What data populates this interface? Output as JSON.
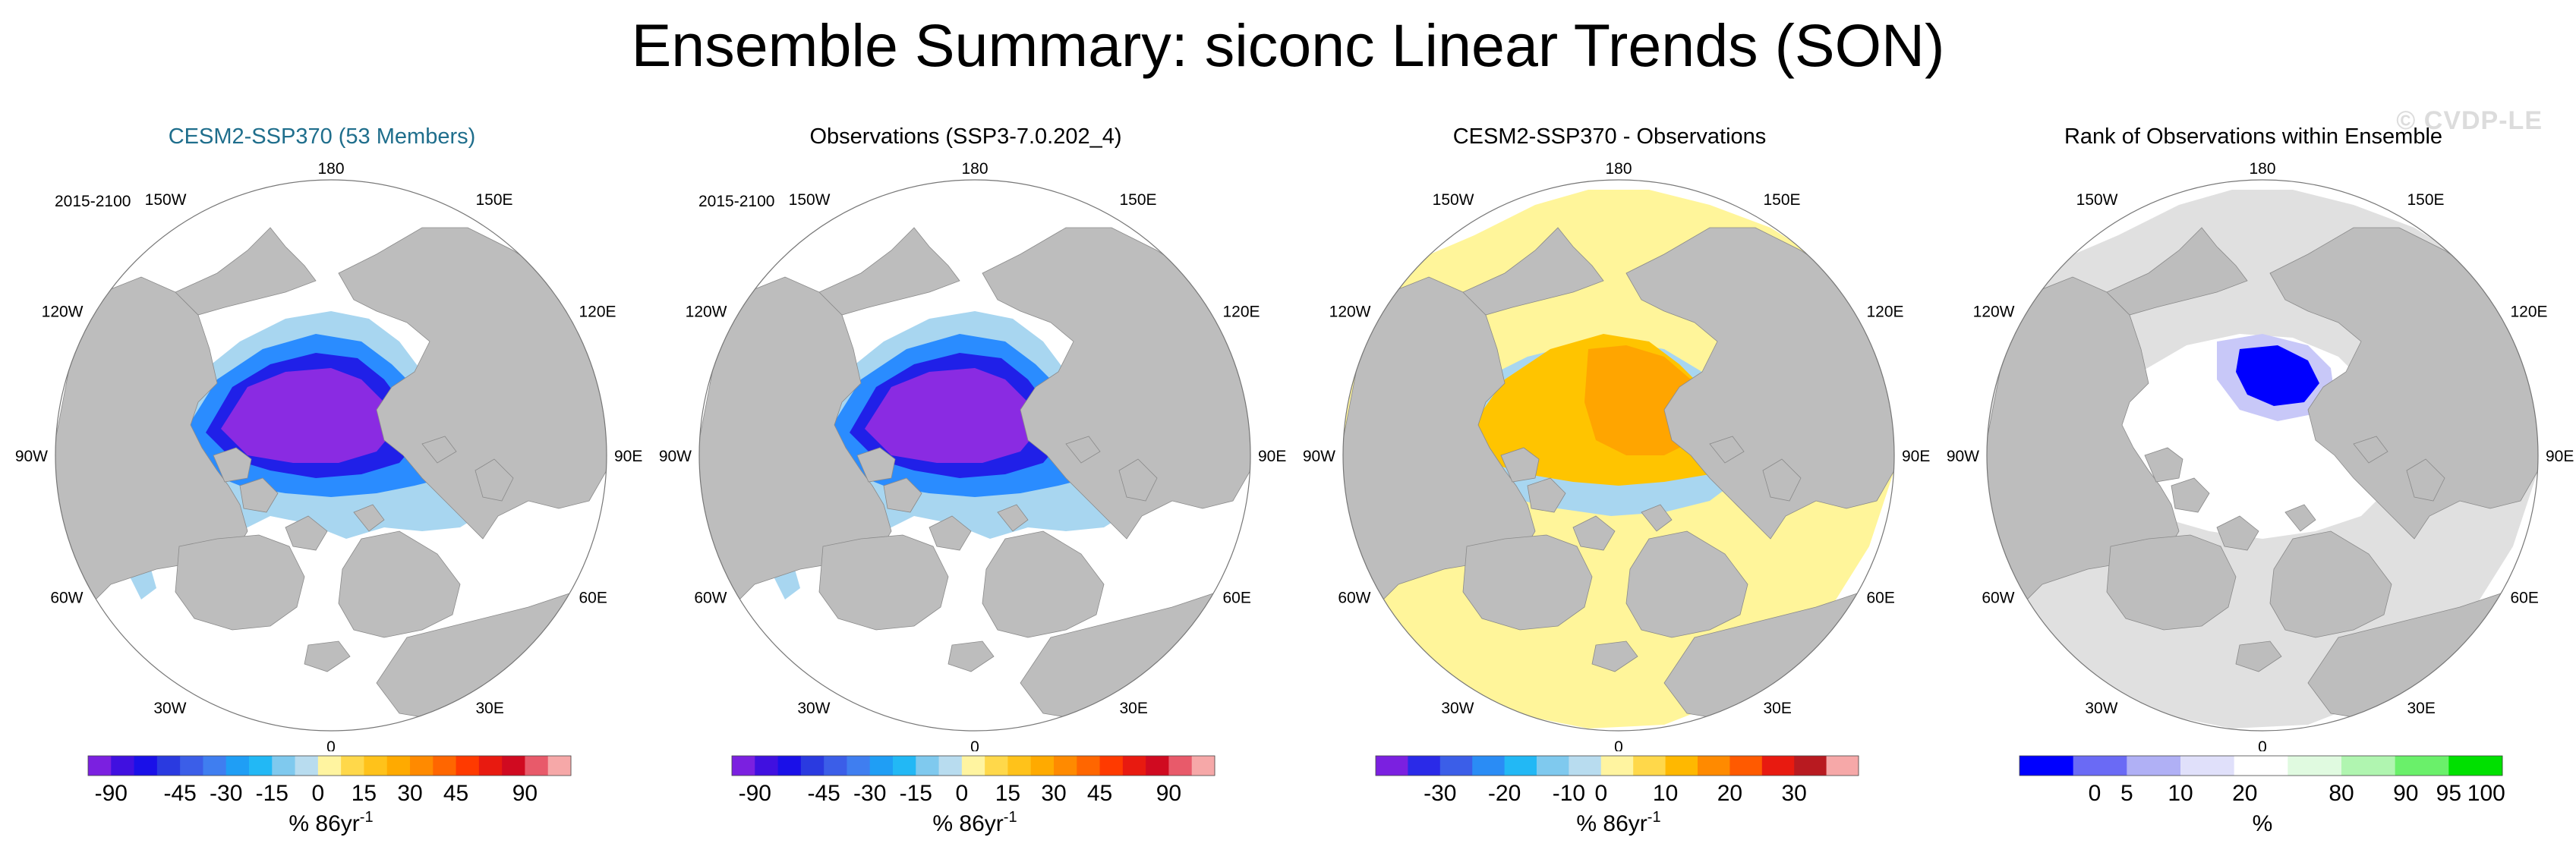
{
  "title": "Ensemble Summary: siconc Linear Trends (SON)",
  "watermark": "© CVDP-LE",
  "colors": {
    "land": "#bdbdbd",
    "ocean": "#ffffff",
    "purple": "#8a2be2",
    "blue": "#2020e8",
    "mid_blue": "#2a8cff",
    "light_blue": "#a8d6f0",
    "yellow": "#fff59a",
    "orange": "#ffa500",
    "gold": "#ffc400",
    "rank_gray": "#e0e0e0",
    "rank_blue": "#0000ff"
  },
  "panels": [
    {
      "title": "CESM2-SSP370 (53 Members)",
      "title_color": "#1f6e8c",
      "period": "2015-2100"
    },
    {
      "title": "Observations (SSP3-7.0.202_4)",
      "title_color": "#000000",
      "period": "2015-2100"
    },
    {
      "title": "CESM2-SSP370 - Observations",
      "title_color": "#000000",
      "period": ""
    },
    {
      "title": "Rank of Observations within Ensemble",
      "title_color": "#000000",
      "period": ""
    }
  ],
  "lon_labels": {
    "top": "180",
    "bottom": "0",
    "l150": "150W",
    "r150": "150E",
    "l120": "120W",
    "r120": "120E",
    "l90": "90W",
    "r90": "90E",
    "l60": "60W",
    "r60": "60E",
    "l30": "30W",
    "r30": "30E"
  },
  "colorbars": [
    {
      "unit": "% 86yr",
      "unit_sup": "-1",
      "colors": [
        "#7b20e0",
        "#4010e0",
        "#1a10e8",
        "#2a3ae0",
        "#3b5ee8",
        "#3f7ef0",
        "#1f9ef5",
        "#22b8f5",
        "#7fc9ee",
        "#b8dcef",
        "#fff4a0",
        "#ffd84a",
        "#ffc21a",
        "#ffaa00",
        "#ff8a00",
        "#ff6600",
        "#ff3a00",
        "#e81a10",
        "#d00a20",
        "#e85a6a",
        "#f6a8a8"
      ],
      "ticks": [
        "-90",
        "-45",
        "-30",
        "-15",
        "0",
        "15",
        "30",
        "45",
        "90"
      ]
    },
    {
      "unit": "% 86yr",
      "unit_sup": "-1",
      "colors": [
        "#7b20e0",
        "#4010e0",
        "#1a10e8",
        "#2a3ae0",
        "#3b5ee8",
        "#3f7ef0",
        "#1f9ef5",
        "#22b8f5",
        "#7fc9ee",
        "#b8dcef",
        "#fff4a0",
        "#ffd84a",
        "#ffc21a",
        "#ffaa00",
        "#ff8a00",
        "#ff6600",
        "#ff3a00",
        "#e81a10",
        "#d00a20",
        "#e85a6a",
        "#f6a8a8"
      ],
      "ticks": [
        "-90",
        "-45",
        "-30",
        "-15",
        "0",
        "15",
        "30",
        "45",
        "90"
      ]
    },
    {
      "unit": "% 86yr",
      "unit_sup": "-1",
      "colors": [
        "#7b20e0",
        "#2a2ae8",
        "#3b5ee8",
        "#2a8cf5",
        "#22b8f5",
        "#7fc9ee",
        "#b8dcef",
        "#fff4a0",
        "#ffd84a",
        "#ffb800",
        "#ff8a00",
        "#ff5a00",
        "#e81a10",
        "#b81a20",
        "#f6a8a8"
      ],
      "ticks": [
        "-30",
        "-20",
        "-10",
        "0",
        "10",
        "20",
        "30"
      ]
    },
    {
      "unit": "%",
      "unit_sup": "",
      "colors": [
        "#0000ff",
        "#6a6af5",
        "#b0b0f5",
        "#e0e0fa",
        "#ffffff",
        "#e0fae0",
        "#b0f5b0",
        "#6af06a",
        "#00e000"
      ],
      "ticks": [
        "0",
        "5",
        "10",
        "20",
        "80",
        "90",
        "95",
        "100"
      ]
    }
  ]
}
